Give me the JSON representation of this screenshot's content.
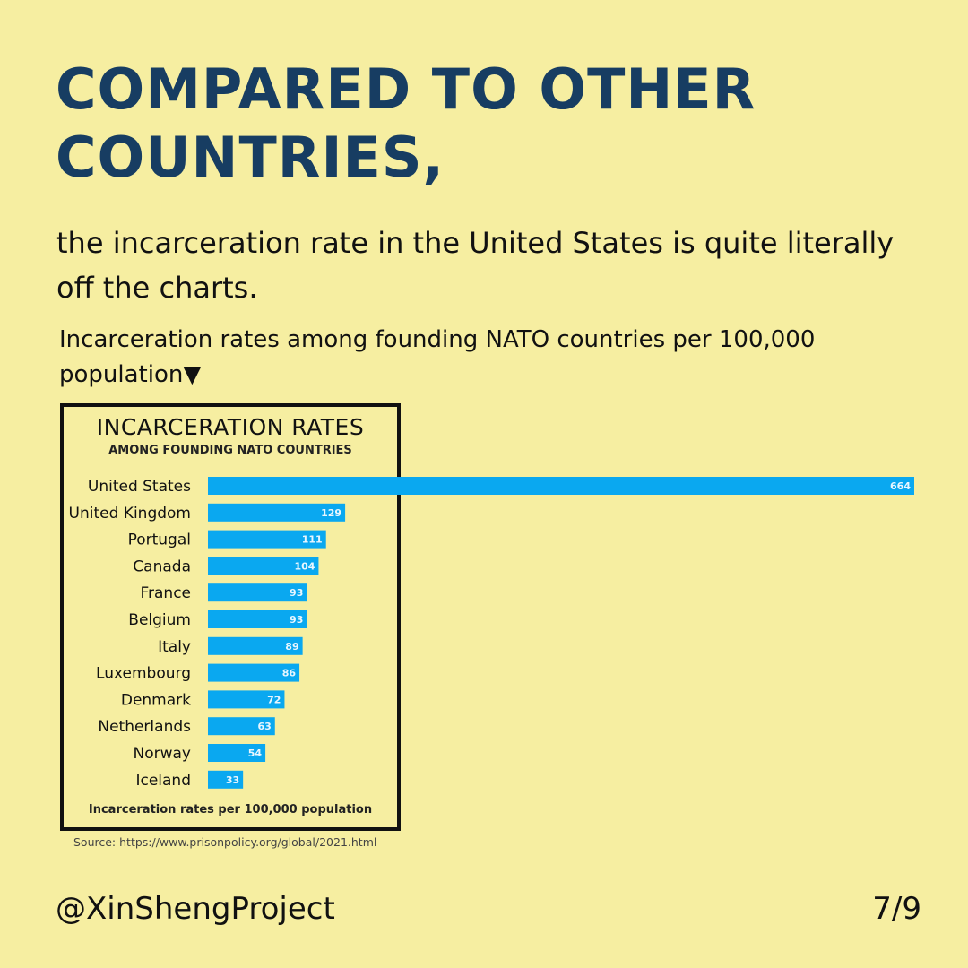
{
  "heading": "COMPARED TO OTHER COUNTRIES,",
  "subheading": "the incarceration rate in the United States is quite literally off the charts.",
  "caption": "Incarceration rates among founding NATO countries per 100,000 population▼",
  "handle": "@XinShengProject",
  "page_indicator": "7/9",
  "colors": {
    "background": "#f6eea1",
    "heading": "#173d62",
    "bar": "#0aa8f0"
  },
  "chart_data": {
    "type": "bar",
    "orientation": "horizontal",
    "title": "INCARCERATION RATES",
    "subtitle": "AMONG FOUNDING NATO COUNTRIES",
    "xlabel": "Incarceration rates per 100,000 population",
    "source": "Source: https://www.prisonpolicy.org/global/2021.html",
    "categories": [
      "United States",
      "United Kingdom",
      "Portugal",
      "Canada",
      "France",
      "Belgium",
      "Italy",
      "Luxembourg",
      "Denmark",
      "Netherlands",
      "Norway",
      "Iceland"
    ],
    "values": [
      664,
      129,
      111,
      104,
      93,
      93,
      89,
      86,
      72,
      63,
      54,
      33
    ],
    "data_labels": true,
    "grid": false
  }
}
